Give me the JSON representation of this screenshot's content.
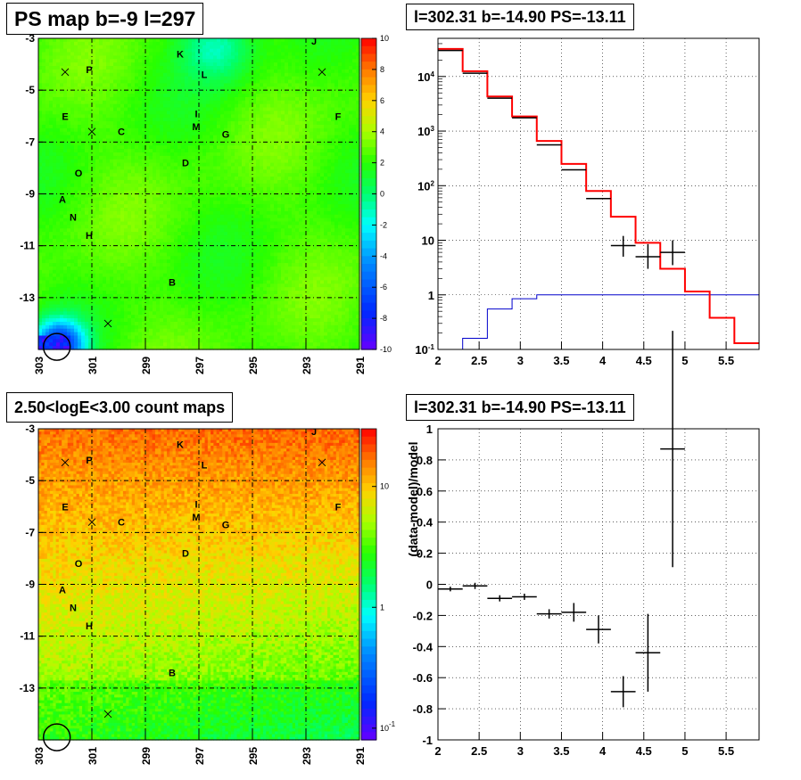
{
  "panels": {
    "tl_title": "PS map b=-9 l=297",
    "tr_title": "l=302.31 b=-14.90 PS=-13.11",
    "bl_title": "2.50<logE<3.00 count maps",
    "br_title": "l=302.31 b=-14.90 PS=-13.11"
  },
  "colors": {
    "data": "#000000",
    "model": "#ff0000",
    "ps_component": "#0000cc",
    "map_grid": "#000000"
  },
  "chart_data": [
    {
      "id": "ps-map",
      "type": "heatmap",
      "title": "PS map b=-9 l=297",
      "x_ticks": [
        "303",
        "301",
        "299",
        "297",
        "295",
        "293",
        "291"
      ],
      "x_range": [
        303,
        291
      ],
      "y_ticks": [
        "-3",
        "-5",
        "-7",
        "-9",
        "-11",
        "-13"
      ],
      "y_range": [
        -3,
        -15
      ],
      "colorbar_ticks": [
        "10",
        "8",
        "6",
        "4",
        "2",
        "0",
        "-2",
        "-4",
        "-6",
        "-8",
        "-10"
      ],
      "colorbar_range": [
        -10,
        10
      ],
      "source_labels": [
        {
          "t": "J",
          "l": 292.7,
          "b": -3.1
        },
        {
          "t": "K",
          "l": 297.7,
          "b": -3.6
        },
        {
          "t": "P",
          "l": 301.1,
          "b": -4.2
        },
        {
          "t": "L",
          "l": 296.8,
          "b": -4.4
        },
        {
          "t": "E",
          "l": 302.0,
          "b": -6.0
        },
        {
          "t": "F",
          "l": 291.8,
          "b": -6.0
        },
        {
          "t": "I",
          "l": 297.1,
          "b": -5.9
        },
        {
          "t": "M",
          "l": 297.1,
          "b": -6.4
        },
        {
          "t": "C",
          "l": 299.9,
          "b": -6.6
        },
        {
          "t": "G",
          "l": 296.0,
          "b": -6.7
        },
        {
          "t": "D",
          "l": 297.5,
          "b": -7.8
        },
        {
          "t": "O",
          "l": 301.5,
          "b": -8.2
        },
        {
          "t": "A",
          "l": 302.1,
          "b": -9.2
        },
        {
          "t": "N",
          "l": 301.7,
          "b": -9.9
        },
        {
          "t": "H",
          "l": 301.1,
          "b": -10.6
        },
        {
          "t": "B",
          "l": 298.0,
          "b": -12.4
        }
      ],
      "cross_markers": [
        {
          "l": 302.0,
          "b": -4.3
        },
        {
          "l": 301.0,
          "b": -6.6
        },
        {
          "l": 292.4,
          "b": -4.3
        },
        {
          "l": 300.4,
          "b": -14.0
        }
      ],
      "circle_marker": {
        "l": 302.31,
        "b": -14.9
      }
    },
    {
      "id": "spectrum",
      "type": "line",
      "title": "l=302.31 b=-14.90 PS=-13.11",
      "xlim": [
        2,
        5.9
      ],
      "x_ticks": [
        "2",
        "2.5",
        "3",
        "3.5",
        "4",
        "4.5",
        "5",
        "5.5"
      ],
      "ylim": [
        0.1,
        50000
      ],
      "y_scale": "log",
      "y_ticks": [
        "10^{-1}",
        "1",
        "10",
        "10^{2}",
        "10^{3}",
        "10^{4}"
      ],
      "data_points": [
        {
          "x": 2.15,
          "y": 30000
        },
        {
          "x": 2.45,
          "y": 11500
        },
        {
          "x": 2.75,
          "y": 4000
        },
        {
          "x": 3.05,
          "y": 1750
        },
        {
          "x": 3.35,
          "y": 560
        },
        {
          "x": 3.65,
          "y": 195
        },
        {
          "x": 3.95,
          "y": 58
        },
        {
          "x": 4.25,
          "y": 8,
          "err_lo": 5,
          "err_hi": 12
        },
        {
          "x": 4.55,
          "y": 5,
          "err_lo": 3,
          "err_hi": 8.5
        },
        {
          "x": 4.85,
          "y": 6,
          "err_lo": 3.5,
          "err_hi": 10
        }
      ],
      "model_edges": [
        2.0,
        2.3,
        2.6,
        2.9,
        3.2,
        3.5,
        3.8,
        4.1,
        4.4,
        4.7,
        5.0,
        5.3,
        5.6,
        5.9
      ],
      "model_values": [
        32000,
        12500,
        4300,
        1850,
        660,
        250,
        80,
        27,
        9,
        3,
        1.15,
        0.38,
        0.13
      ],
      "ps_values": [
        0.1,
        0.16,
        0.55,
        0.85,
        1.0,
        1.0,
        1.0,
        1.0,
        1.0,
        1.0,
        1.0,
        1.0,
        1.0
      ]
    },
    {
      "id": "count-map",
      "type": "heatmap",
      "title": "2.50<logE<3.00 count maps",
      "x_ticks": [
        "303",
        "301",
        "299",
        "297",
        "295",
        "293",
        "291"
      ],
      "x_range": [
        303,
        291
      ],
      "y_ticks": [
        "-3",
        "-5",
        "-7",
        "-9",
        "-11",
        "-13"
      ],
      "y_range": [
        -3,
        -15
      ],
      "colorbar_ticks": [
        "10",
        "1",
        "10^{-1}"
      ],
      "colorbar_scale": "log",
      "colorbar_range": [
        0.08,
        30
      ]
    },
    {
      "id": "residuals",
      "type": "scatter",
      "title": "l=302.31 b=-14.90 PS=-13.11",
      "ylabel": "(data-model)/model",
      "xlim": [
        2,
        5.9
      ],
      "x_ticks": [
        "2",
        "2.5",
        "3",
        "3.5",
        "4",
        "4.5",
        "5",
        "5.5"
      ],
      "ylim": [
        -1,
        1
      ],
      "y_ticks": [
        "-1",
        "-0.8",
        "-0.6",
        "-0.4",
        "-0.2",
        "0",
        "0.2",
        "0.4",
        "0.6",
        "0.8",
        "1"
      ],
      "points": [
        {
          "x": 2.15,
          "y": -0.03,
          "err": 0.015
        },
        {
          "x": 2.45,
          "y": -0.01,
          "err": 0.02
        },
        {
          "x": 2.75,
          "y": -0.09,
          "err": 0.02
        },
        {
          "x": 3.05,
          "y": -0.08,
          "err": 0.02
        },
        {
          "x": 3.35,
          "y": -0.19,
          "err": 0.03
        },
        {
          "x": 3.65,
          "y": -0.18,
          "err": 0.06
        },
        {
          "x": 3.95,
          "y": -0.29,
          "err": 0.09
        },
        {
          "x": 4.25,
          "y": -0.69,
          "err": 0.1
        },
        {
          "x": 4.55,
          "y": -0.44,
          "err": 0.25
        },
        {
          "x": 4.85,
          "y": 0.87,
          "err": 0.76
        }
      ]
    }
  ]
}
